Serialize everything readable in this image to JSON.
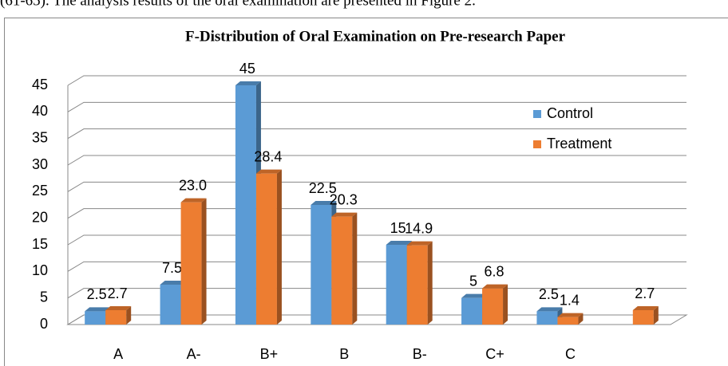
{
  "caption": "(61-65). The analysis results of the oral examination are presented in Figure 2.",
  "chart_data": {
    "type": "bar3d",
    "title": "F-Distribution  of Oral Examination on Pre-research Paper",
    "categories": [
      "A",
      "A-",
      "B+",
      "B",
      "B-",
      "C+",
      "C",
      null
    ],
    "series": [
      {
        "name": "Control",
        "color": "#5b9bd5",
        "values": [
          2.5,
          7.5,
          45,
          22.5,
          15,
          5,
          2.5,
          null
        ]
      },
      {
        "name": "Treatment",
        "color": "#ed7d31",
        "values": [
          2.7,
          23.0,
          28.4,
          20.3,
          14.9,
          6.8,
          1.4,
          2.7
        ],
        "value_labels": [
          "2.7",
          "23.0",
          "28.4",
          "20.3",
          "14.9",
          "6.8",
          "1.4",
          "2.7"
        ]
      }
    ],
    "ylim": [
      0,
      45
    ],
    "yticks": [
      0,
      5,
      10,
      15,
      20,
      25,
      30,
      35,
      40,
      45
    ],
    "grid": true,
    "legend": "right"
  }
}
